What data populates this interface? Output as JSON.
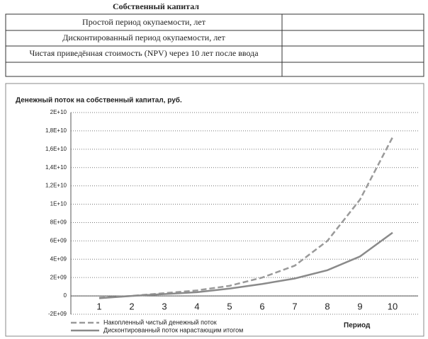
{
  "table": {
    "title": "Собственный капитал",
    "rows": [
      "Простой период окупаемости, лет",
      "Дисконтированный период окупаемости, лет",
      "Чистая приведённая стоимость (NPV) через 10 лет после ввода"
    ]
  },
  "chart_data": {
    "type": "line",
    "title": "Денежный поток на собственный капитал, руб.",
    "x_label": "Период",
    "categories": [
      "1",
      "2",
      "3",
      "4",
      "5",
      "6",
      "7",
      "8",
      "9",
      "10"
    ],
    "series": [
      {
        "name": "Накопленный чистый денежный поток",
        "color": "#9a9a9a",
        "dash": true,
        "values": [
          -200000000,
          0,
          300000000,
          600000000,
          1100000000,
          2000000000,
          3300000000,
          6000000000,
          10500000000,
          17300000000
        ]
      },
      {
        "name": "Дисконтированный поток нарастающим итогом",
        "color": "#8a8a8a",
        "dash": false,
        "values": [
          -250000000,
          0,
          200000000,
          400000000,
          800000000,
          1300000000,
          1900000000,
          2800000000,
          4300000000,
          6900000000
        ]
      }
    ],
    "ylim": [
      -2000000000,
      20000000000
    ],
    "yticks": [
      {
        "value": -2000000000,
        "label": "-2E+09"
      },
      0,
      {
        "value": 2000000000,
        "label": "2E+09"
      },
      {
        "value": 4000000000,
        "label": "4E+09"
      },
      {
        "value": 6000000000,
        "label": "6E+09"
      },
      {
        "value": 8000000000,
        "label": "8E+09"
      },
      {
        "value": 10000000000,
        "label": "1E+10"
      },
      {
        "value": 12000000000,
        "label": "1,2E+10"
      },
      {
        "value": 14000000000,
        "label": "1,4E+10"
      },
      {
        "value": 16000000000,
        "label": "1,6E+10"
      },
      {
        "value": 18000000000,
        "label": "1,8E+10"
      },
      {
        "value": 20000000000,
        "label": "2E+10"
      }
    ],
    "grid": true,
    "legend": "bottom-left"
  }
}
